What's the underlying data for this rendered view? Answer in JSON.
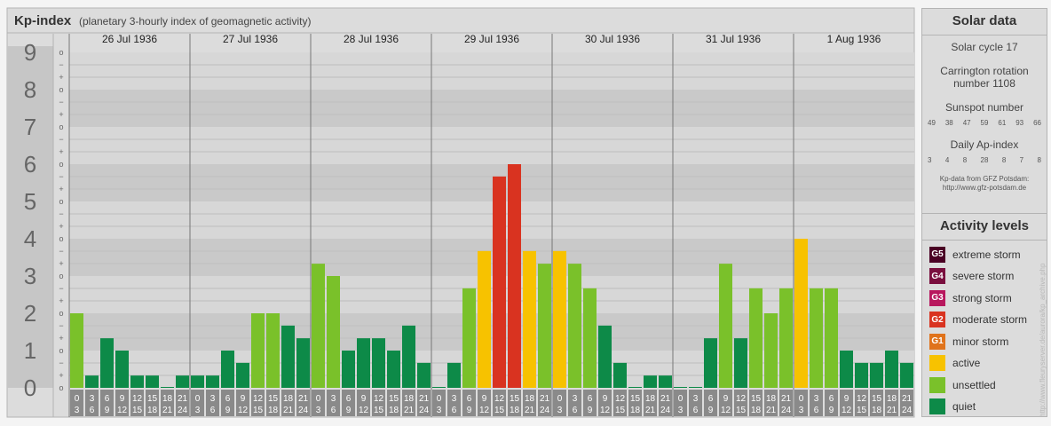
{
  "header": {
    "title": "Kp-index",
    "subtitle": "(planetary 3-hourly index of geomagnetic activity)"
  },
  "chart_data": {
    "type": "bar",
    "title": "Kp-index",
    "subtitle": "(planetary 3-hourly index of geomagnetic activity)",
    "ylim": [
      0,
      9
    ],
    "y_ticks": [
      "0",
      "1",
      "2",
      "3",
      "4",
      "5",
      "6",
      "7",
      "8",
      "9"
    ],
    "y_minor_labels": [
      "o",
      "+",
      "−"
    ],
    "days": [
      "26 Jul 1936",
      "27 Jul 1936",
      "28 Jul 1936",
      "29 Jul 1936",
      "30 Jul 1936",
      "31 Jul 1936",
      "1 Aug 1936"
    ],
    "interval_start": [
      "0",
      "3",
      "6",
      "9",
      "12",
      "15",
      "18",
      "21"
    ],
    "interval_end": [
      "3",
      "6",
      "9",
      "12",
      "15",
      "18",
      "21",
      "24"
    ],
    "values": [
      2.0,
      0.33,
      1.33,
      1.0,
      0.33,
      0.33,
      0.0,
      0.33,
      0.33,
      0.33,
      1.0,
      0.67,
      2.0,
      2.0,
      1.67,
      1.33,
      3.33,
      3.0,
      1.0,
      1.33,
      1.33,
      1.0,
      1.67,
      0.67,
      0.0,
      0.67,
      2.67,
      3.67,
      5.67,
      6.0,
      3.67,
      3.33,
      3.67,
      3.33,
      2.67,
      1.67,
      0.67,
      0.0,
      0.33,
      0.33,
      0.0,
      0.0,
      1.33,
      3.33,
      1.33,
      2.67,
      2.0,
      2.67,
      4.0,
      2.67,
      2.67,
      1.0,
      0.67,
      0.67,
      1.0,
      0.67
    ],
    "grid": true
  },
  "solar": {
    "title": "Solar data",
    "cycle": "Solar cycle 17",
    "carrington_line1": "Carrington rotation",
    "carrington_line2": "number 1108",
    "sunspot_title": "Sunspot number",
    "sunspots": [
      "49",
      "38",
      "47",
      "59",
      "61",
      "93",
      "66"
    ],
    "ap_title": "Daily Ap-index",
    "ap": [
      "3",
      "4",
      "8",
      "28",
      "8",
      "7",
      "8"
    ],
    "credit_line1": "Kp-data from GFZ Potsdam:",
    "credit_line2": "http://www.gfz-potsdam.de"
  },
  "activity": {
    "title": "Activity levels",
    "levels": [
      {
        "code": "G5",
        "label": "extreme storm",
        "color": "#4a0024"
      },
      {
        "code": "G4",
        "label": "severe storm",
        "color": "#7a0f3e"
      },
      {
        "code": "G3",
        "label": "strong storm",
        "color": "#b8175e"
      },
      {
        "code": "G2",
        "label": "moderate storm",
        "color": "#d93320"
      },
      {
        "code": "G1",
        "label": "minor storm",
        "color": "#e0731b"
      },
      {
        "code": "",
        "label": "active",
        "color": "#f7c200"
      },
      {
        "code": "",
        "label": "unsettled",
        "color": "#7ac12a"
      },
      {
        "code": "",
        "label": "quiet",
        "color": "#0d8a48"
      }
    ]
  },
  "colors": {
    "quiet": "#0d8a48",
    "unsettled": "#7ac12a",
    "active": "#f7c200",
    "minor": "#e0731b",
    "moderate": "#d93320"
  },
  "watermark": "http://www.fleuryserver.de/aurora/kp_archive.php"
}
